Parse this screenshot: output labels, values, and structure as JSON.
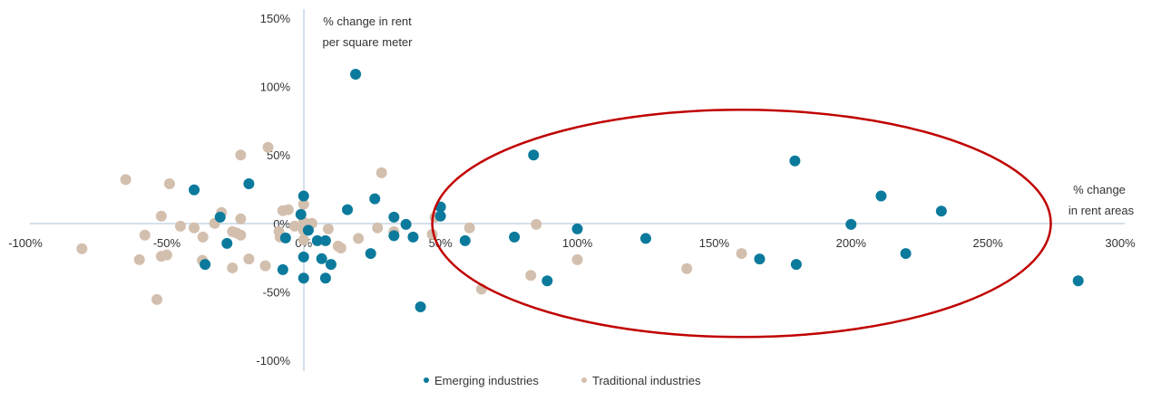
{
  "chart_data": {
    "type": "scatter",
    "title": "",
    "xlabel": [
      "% change",
      "in rent areas"
    ],
    "ylabel": [
      "% change in rent",
      "per square meter"
    ],
    "xlim": [
      -100,
      300
    ],
    "ylim": [
      -100,
      150
    ],
    "x_ticks": [
      -100,
      -50,
      0,
      50,
      100,
      150,
      200,
      250,
      300
    ],
    "x_tick_labels": [
      "-100%",
      "-50%",
      "0%",
      "50%",
      "100%",
      "150%",
      "200%",
      "250%",
      "300%"
    ],
    "y_ticks": [
      -100,
      -50,
      0,
      50,
      100,
      150
    ],
    "y_tick_labels": [
      "-100%",
      "-50%",
      "0%",
      "50%",
      "100%",
      "150%"
    ],
    "grid": false,
    "legend_position": "bottom",
    "annotation": {
      "type": "ellipse",
      "center": [
        160,
        0
      ],
      "radii": [
        113,
        83
      ],
      "color": "#c00000"
    },
    "series": [
      {
        "name": "Emerging industries",
        "color": "#0b7a9c",
        "points": [
          [
            19,
            109
          ],
          [
            -40,
            24.5
          ],
          [
            -20,
            29
          ],
          [
            -30.5,
            4.6
          ],
          [
            -28,
            -14.6
          ],
          [
            -36,
            -30
          ],
          [
            0,
            20
          ],
          [
            -1,
            6.6
          ],
          [
            1.7,
            -5
          ],
          [
            -6.6,
            -10.6
          ],
          [
            5,
            -12.6
          ],
          [
            8,
            -12.6
          ],
          [
            0,
            -24.5
          ],
          [
            6.6,
            -25.8
          ],
          [
            10,
            -30
          ],
          [
            -7.6,
            -33.8
          ],
          [
            0,
            -40
          ],
          [
            8,
            -40
          ],
          [
            16,
            10
          ],
          [
            26,
            18
          ],
          [
            24.5,
            -22
          ],
          [
            33,
            4.6
          ],
          [
            33,
            -9
          ],
          [
            37.4,
            -0.7
          ],
          [
            40,
            -10
          ],
          [
            42.7,
            -61
          ],
          [
            50,
            12
          ],
          [
            50,
            5.3
          ],
          [
            59,
            -12.6
          ],
          [
            77,
            -10
          ],
          [
            84,
            50
          ],
          [
            89,
            -42
          ],
          [
            100,
            -4
          ],
          [
            125,
            -11
          ],
          [
            166.6,
            -26
          ],
          [
            179.5,
            45.7
          ],
          [
            180,
            -30
          ],
          [
            200,
            -0.7
          ],
          [
            211,
            20
          ],
          [
            220,
            -22
          ],
          [
            233,
            9
          ],
          [
            283,
            -42
          ]
        ]
      },
      {
        "name": "Traditional industries",
        "color": "#d3bfae",
        "points": [
          [
            -81,
            -18.5
          ],
          [
            -65,
            32
          ],
          [
            -60,
            -26.5
          ],
          [
            -58,
            -8.6
          ],
          [
            -53.6,
            -55.6
          ],
          [
            -52,
            5.3
          ],
          [
            -52,
            -24
          ],
          [
            -50,
            -23
          ],
          [
            -49,
            29
          ],
          [
            -45,
            -2
          ],
          [
            -40,
            -3.3
          ],
          [
            -36.8,
            -10
          ],
          [
            -37,
            -27
          ],
          [
            -32.5,
            0
          ],
          [
            -30,
            8
          ],
          [
            -26,
            -32.5
          ],
          [
            -26,
            -6
          ],
          [
            -24.5,
            -7
          ],
          [
            -23,
            3.3
          ],
          [
            -23,
            -8.6
          ],
          [
            -23,
            50
          ],
          [
            -20,
            -26
          ],
          [
            -14,
            -31
          ],
          [
            -13,
            55.6
          ],
          [
            -7.6,
            9.3
          ],
          [
            -5.6,
            10
          ],
          [
            -9,
            -6
          ],
          [
            -8.6,
            -10
          ],
          [
            -3.3,
            -2
          ],
          [
            0,
            14
          ],
          [
            0,
            1
          ],
          [
            0,
            -5
          ],
          [
            0,
            -12
          ],
          [
            3,
            0
          ],
          [
            9,
            -4
          ],
          [
            12.6,
            -16.6
          ],
          [
            13.6,
            -18
          ],
          [
            20,
            -11
          ],
          [
            27,
            -3.3
          ],
          [
            28.5,
            37
          ],
          [
            33,
            -6
          ],
          [
            48,
            4.6
          ],
          [
            47,
            -8
          ],
          [
            60.6,
            -3.3
          ],
          [
            65,
            -48
          ],
          [
            83,
            -38
          ],
          [
            85,
            -0.7
          ],
          [
            100,
            -26.5
          ],
          [
            140,
            -33
          ],
          [
            160,
            -22
          ]
        ]
      }
    ]
  }
}
